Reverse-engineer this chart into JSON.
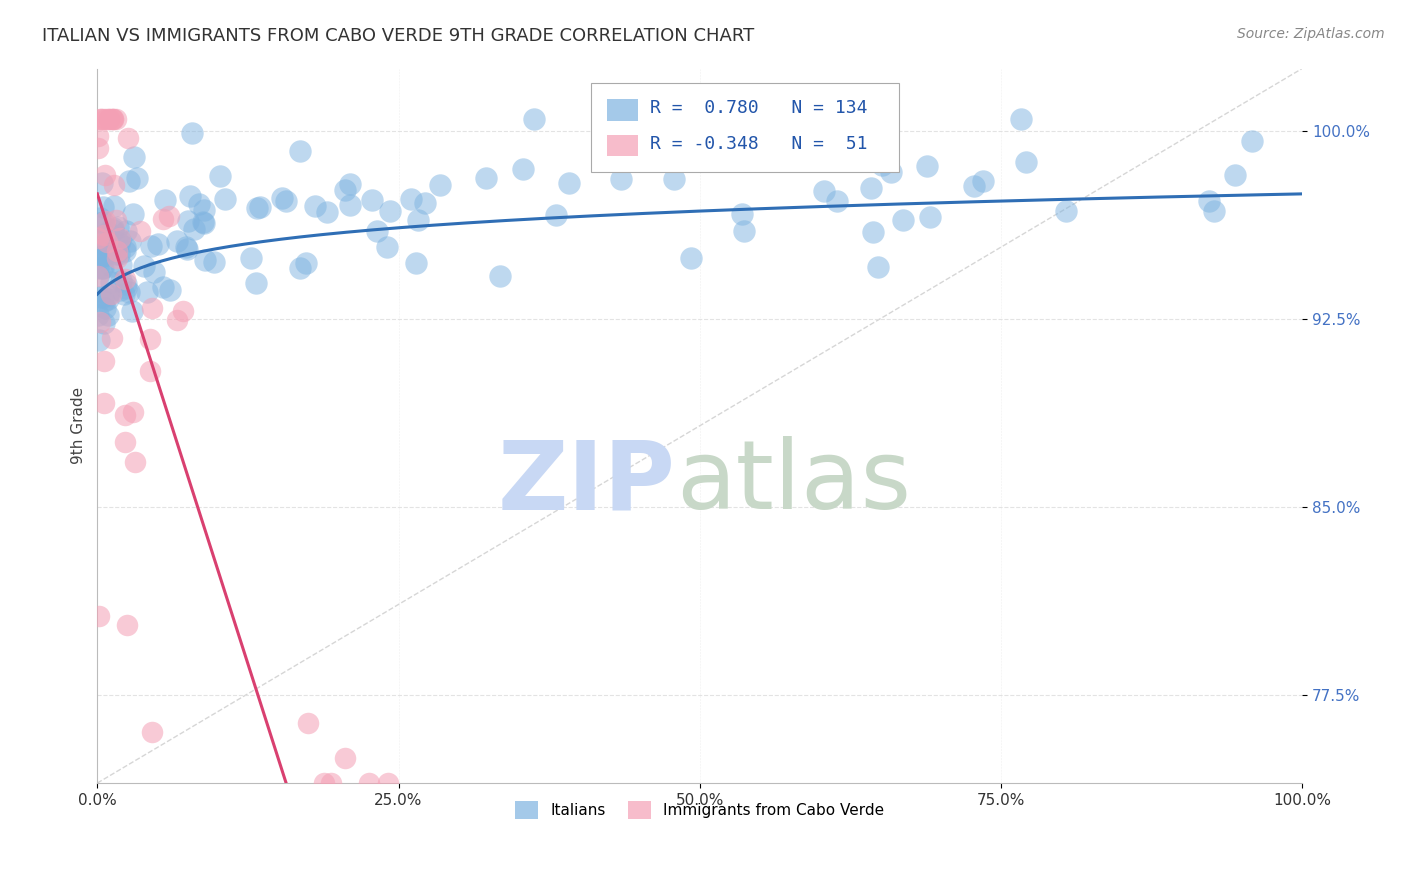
{
  "title": "ITALIAN VS IMMIGRANTS FROM CABO VERDE 9TH GRADE CORRELATION CHART",
  "source": "Source: ZipAtlas.com",
  "ylabel": "9th Grade",
  "xlim": [
    0.0,
    100.0
  ],
  "ylim": [
    74.0,
    102.5
  ],
  "yticks_right": [
    77.5,
    85.0,
    92.5,
    100.0
  ],
  "ytick_labels_right": [
    "77.5%",
    "85.0%",
    "92.5%",
    "100.0%"
  ],
  "xticks": [
    0.0,
    25.0,
    50.0,
    75.0,
    100.0
  ],
  "xtick_labels": [
    "0.0%",
    "25.0%",
    "50.0%",
    "75.0%",
    "100.0%"
  ],
  "blue_color": "#7eb3e0",
  "pink_color": "#f4a0b5",
  "blue_line_color": "#2f6eb5",
  "pink_line_color": "#d94070",
  "legend_R_blue": "0.780",
  "legend_N_blue": "134",
  "legend_R_pink": "-0.348",
  "legend_N_pink": "51",
  "watermark_color_zip": "#c8d8f4",
  "watermark_color_atlas": "#c8d8c8",
  "background_color": "#ffffff",
  "grid_color": "#e0e0e0",
  "blue_seed": 42,
  "pink_seed": 17,
  "blue_n": 134,
  "pink_n": 51
}
